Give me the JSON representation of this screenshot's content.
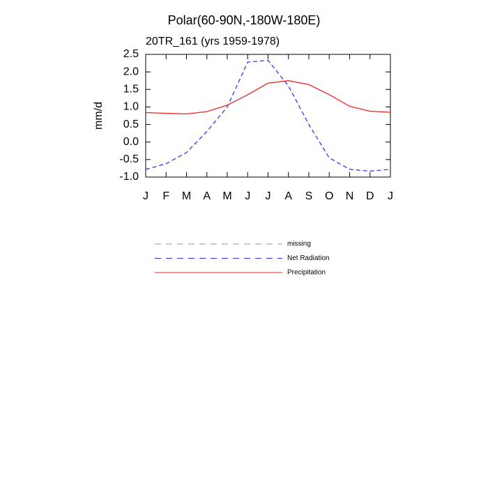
{
  "chart_data": {
    "type": "line",
    "title": "Polar(60-90N,-180W-180E)",
    "subtitle": "20TR_161 (yrs 1959-1978)",
    "y_label": "mm/d",
    "categories": [
      "J",
      "F",
      "M",
      "A",
      "M",
      "J",
      "J",
      "A",
      "S",
      "O",
      "N",
      "D",
      "J"
    ],
    "ylim": [
      -1.0,
      2.5
    ],
    "yticks": [
      {
        "value": -1.0,
        "label": "-1.0"
      },
      -0.5,
      {
        "value": 0,
        "label": "0.0"
      },
      0.5,
      {
        "value": 1.0,
        "label": "1.0"
      },
      1.5,
      {
        "value": 2.0,
        "label": "2.0"
      },
      2.5
    ],
    "series": [
      {
        "name": "missing",
        "color": "#999999",
        "dash": true,
        "values": [
          null,
          null,
          null,
          null,
          null,
          null,
          null,
          null,
          null,
          null,
          null,
          null,
          null
        ]
      },
      {
        "name": "Net Radiation",
        "color": "#3333ee",
        "dash": true,
        "values": [
          -0.78,
          -0.62,
          -0.3,
          0.3,
          1.0,
          2.28,
          2.33,
          1.6,
          0.5,
          -0.45,
          -0.78,
          -0.83,
          -0.78
        ]
      },
      {
        "name": "Precipitation",
        "color": "#ee2222",
        "dash": false,
        "values": [
          0.84,
          0.82,
          0.8,
          0.87,
          1.05,
          1.35,
          1.68,
          1.75,
          1.64,
          1.35,
          1.02,
          0.88,
          0.85
        ]
      }
    ]
  }
}
